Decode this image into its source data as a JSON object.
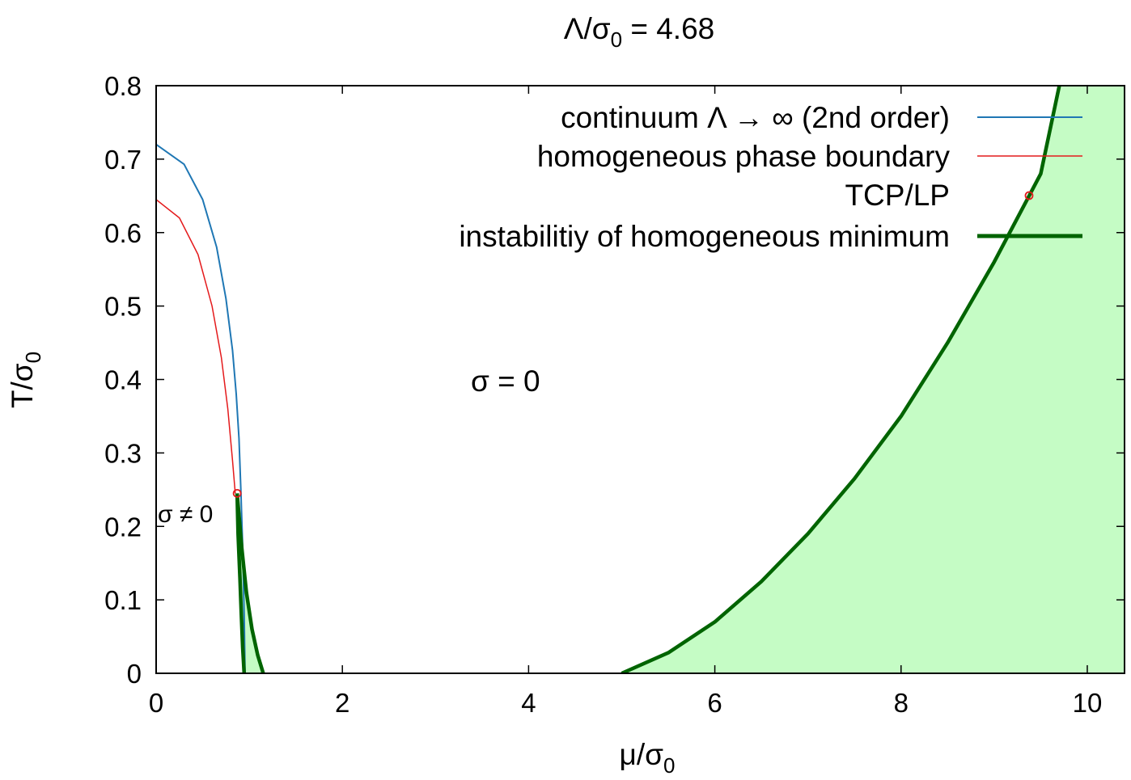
{
  "chart_data": {
    "type": "line",
    "title_main": "Λ/σ",
    "title_sub": "0",
    "title_tail": " = 4.68",
    "xlabel_main": "μ/σ",
    "xlabel_sub": "0",
    "ylabel_main": "T/σ",
    "ylabel_sub": "0",
    "xlim": [
      0,
      10.4
    ],
    "ylim": [
      0,
      0.8
    ],
    "xticks": [
      0,
      2,
      4,
      6,
      8,
      10
    ],
    "xtick_labels": [
      "0",
      "2",
      "4",
      "6",
      "8",
      "10"
    ],
    "yticks": [
      0,
      0.1,
      0.2,
      0.3,
      0.4,
      0.5,
      0.6,
      0.7,
      0.8
    ],
    "ytick_labels": [
      "0",
      "0.1",
      "0.2",
      "0.3",
      "0.4",
      "0.5",
      "0.6",
      "0.7",
      "0.8"
    ],
    "grid": false,
    "legend_position": "top-right",
    "annotations": [
      {
        "text": "σ = 0",
        "x": 3.9,
        "y": 0.39
      },
      {
        "text": "σ  ≠ 0",
        "x": 0.0,
        "y": 0.21
      }
    ],
    "series": [
      {
        "name": "continuum Λ → ∞ (2nd order)",
        "color": "#1f77b4",
        "style": "line",
        "x": [
          0,
          0.3,
          0.5,
          0.65,
          0.75,
          0.82,
          0.86,
          0.89,
          0.91,
          0.93,
          0.945,
          0.955
        ],
        "y": [
          0.72,
          0.693,
          0.645,
          0.58,
          0.51,
          0.44,
          0.38,
          0.32,
          0.25,
          0.17,
          0.08,
          0.0
        ]
      },
      {
        "name": "homogeneous phase boundary",
        "color": "#e41a1c",
        "style": "line",
        "x": [
          0,
          0.25,
          0.45,
          0.6,
          0.7,
          0.77,
          0.82,
          0.85
        ],
        "y": [
          0.645,
          0.62,
          0.57,
          0.5,
          0.43,
          0.36,
          0.29,
          0.245
        ]
      },
      {
        "name": "TCP/LP",
        "color": "#e41a1c",
        "style": "point",
        "x": [
          0.87
        ],
        "y": [
          0.245
        ]
      },
      {
        "name": "instabilitiy of homogeneous minimum",
        "color": "#006400",
        "fill": "#c5fcc5",
        "style": "thick",
        "segments": [
          {
            "x": [
              0.87,
              0.88,
              0.9,
              0.915,
              0.93,
              0.945
            ],
            "y": [
              0.245,
              0.19,
              0.13,
              0.08,
              0.035,
              0.0
            ]
          },
          {
            "x": [
              0.87,
              0.92,
              0.97,
              1.03,
              1.09,
              1.15
            ],
            "y": [
              0.245,
              0.17,
              0.11,
              0.06,
              0.025,
              0.0
            ]
          },
          {
            "x": [
              5.0,
              5.5,
              6.0,
              6.5,
              7.0,
              7.5,
              8.0,
              8.5,
              9.0,
              9.5,
              9.7
            ],
            "y": [
              0.0,
              0.028,
              0.07,
              0.125,
              0.19,
              0.265,
              0.35,
              0.45,
              0.56,
              0.68,
              0.8
            ]
          }
        ]
      }
    ]
  }
}
